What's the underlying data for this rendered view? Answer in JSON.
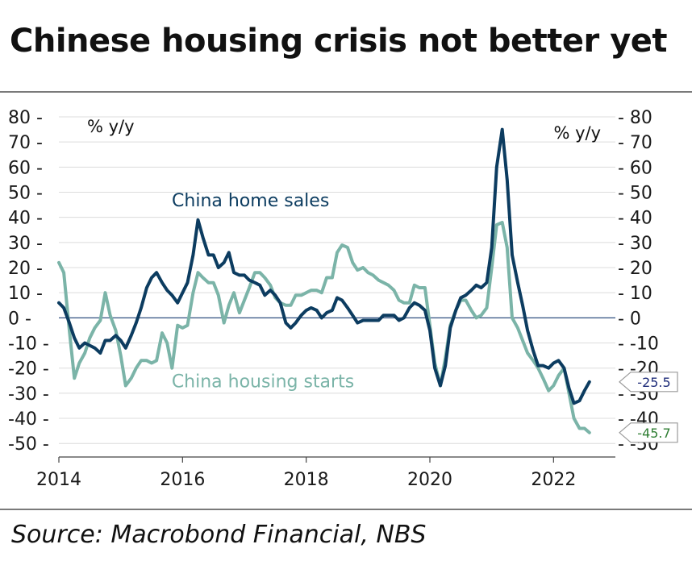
{
  "title": "Chinese housing crisis not better yet",
  "source": "Source: Macrobond Financial, NBS",
  "chart_data": {
    "type": "line",
    "title": "Chinese housing crisis not better yet",
    "ylabel_left": "% y/y",
    "ylabel_right": "% y/y",
    "ylim": [
      -55,
      82
    ],
    "xlim": [
      2014.0,
      2023.0
    ],
    "yticks": [
      80,
      70,
      60,
      50,
      40,
      30,
      20,
      10,
      0,
      -10,
      -20,
      -30,
      -40,
      -50
    ],
    "ytick_labels": [
      "80",
      "70",
      "60",
      "50",
      "40",
      "30",
      "20",
      "10",
      "0",
      "-10",
      "-20",
      "-30",
      "-40",
      "-50"
    ],
    "xticks": [
      2014,
      2016,
      2018,
      2020,
      2022
    ],
    "xtick_labels": [
      "2014",
      "2016",
      "2018",
      "2020",
      "2022"
    ],
    "grid": true,
    "zero_line": true,
    "colors": {
      "home_sales": "#0c3c60",
      "housing_starts": "#7bb4a8",
      "zero_line": "#2f4f7f",
      "grid": "#dcdcdc"
    },
    "series": [
      {
        "name": "China home sales",
        "color": "#0c3c60",
        "last_value_label": "-25.5",
        "points": [
          [
            2014.0,
            6
          ],
          [
            2014.08,
            4
          ],
          [
            2014.17,
            -2
          ],
          [
            2014.25,
            -8
          ],
          [
            2014.33,
            -12
          ],
          [
            2014.42,
            -10
          ],
          [
            2014.5,
            -11
          ],
          [
            2014.58,
            -12
          ],
          [
            2014.67,
            -14
          ],
          [
            2014.75,
            -9
          ],
          [
            2014.83,
            -9
          ],
          [
            2014.92,
            -7
          ],
          [
            2015.0,
            -9
          ],
          [
            2015.08,
            -12
          ],
          [
            2015.17,
            -7
          ],
          [
            2015.25,
            -2
          ],
          [
            2015.33,
            4
          ],
          [
            2015.42,
            12
          ],
          [
            2015.5,
            16
          ],
          [
            2015.58,
            18
          ],
          [
            2015.67,
            14
          ],
          [
            2015.75,
            11
          ],
          [
            2015.83,
            9
          ],
          [
            2015.92,
            6
          ],
          [
            2016.0,
            10
          ],
          [
            2016.08,
            14
          ],
          [
            2016.17,
            25
          ],
          [
            2016.25,
            39
          ],
          [
            2016.33,
            32
          ],
          [
            2016.42,
            25
          ],
          [
            2016.5,
            25
          ],
          [
            2016.58,
            20
          ],
          [
            2016.67,
            22
          ],
          [
            2016.75,
            26
          ],
          [
            2016.83,
            18
          ],
          [
            2016.92,
            17
          ],
          [
            2017.0,
            17
          ],
          [
            2017.08,
            15
          ],
          [
            2017.17,
            14
          ],
          [
            2017.25,
            13
          ],
          [
            2017.33,
            9
          ],
          [
            2017.42,
            11
          ],
          [
            2017.5,
            9
          ],
          [
            2017.58,
            6
          ],
          [
            2017.67,
            -2
          ],
          [
            2017.75,
            -4
          ],
          [
            2017.83,
            -2
          ],
          [
            2017.92,
            1
          ],
          [
            2018.0,
            3
          ],
          [
            2018.08,
            4
          ],
          [
            2018.17,
            3
          ],
          [
            2018.25,
            0
          ],
          [
            2018.33,
            2
          ],
          [
            2018.42,
            3
          ],
          [
            2018.5,
            8
          ],
          [
            2018.58,
            7
          ],
          [
            2018.67,
            4
          ],
          [
            2018.75,
            1
          ],
          [
            2018.83,
            -2
          ],
          [
            2018.92,
            -1
          ],
          [
            2019.0,
            -1
          ],
          [
            2019.08,
            -1
          ],
          [
            2019.17,
            -1
          ],
          [
            2019.25,
            1
          ],
          [
            2019.33,
            1
          ],
          [
            2019.42,
            1
          ],
          [
            2019.5,
            -1
          ],
          [
            2019.58,
            0
          ],
          [
            2019.67,
            4
          ],
          [
            2019.75,
            6
          ],
          [
            2019.83,
            5
          ],
          [
            2019.92,
            3
          ],
          [
            2020.0,
            -5
          ],
          [
            2020.08,
            -20
          ],
          [
            2020.17,
            -27
          ],
          [
            2020.25,
            -19
          ],
          [
            2020.33,
            -4
          ],
          [
            2020.42,
            3
          ],
          [
            2020.5,
            8
          ],
          [
            2020.58,
            9
          ],
          [
            2020.67,
            11
          ],
          [
            2020.75,
            13
          ],
          [
            2020.83,
            12
          ],
          [
            2020.92,
            14
          ],
          [
            2021.0,
            28
          ],
          [
            2021.08,
            60
          ],
          [
            2021.17,
            75
          ],
          [
            2021.25,
            55
          ],
          [
            2021.33,
            25
          ],
          [
            2021.42,
            14
          ],
          [
            2021.5,
            5
          ],
          [
            2021.58,
            -5
          ],
          [
            2021.67,
            -13
          ],
          [
            2021.75,
            -19
          ],
          [
            2021.83,
            -19
          ],
          [
            2021.92,
            -20
          ],
          [
            2022.0,
            -18
          ],
          [
            2022.08,
            -17
          ],
          [
            2022.17,
            -20
          ],
          [
            2022.25,
            -28
          ],
          [
            2022.33,
            -34
          ],
          [
            2022.42,
            -33
          ],
          [
            2022.5,
            -29
          ],
          [
            2022.58,
            -25.5
          ]
        ]
      },
      {
        "name": "China housing starts",
        "color": "#7bb4a8",
        "last_value_label": "-45.7",
        "points": [
          [
            2014.0,
            22
          ],
          [
            2014.08,
            18
          ],
          [
            2014.17,
            -5
          ],
          [
            2014.25,
            -24
          ],
          [
            2014.33,
            -18
          ],
          [
            2014.42,
            -14
          ],
          [
            2014.5,
            -8
          ],
          [
            2014.58,
            -4
          ],
          [
            2014.67,
            -1
          ],
          [
            2014.75,
            10
          ],
          [
            2014.83,
            1
          ],
          [
            2014.92,
            -5
          ],
          [
            2015.0,
            -15
          ],
          [
            2015.08,
            -27
          ],
          [
            2015.17,
            -24
          ],
          [
            2015.25,
            -20
          ],
          [
            2015.33,
            -17
          ],
          [
            2015.42,
            -17
          ],
          [
            2015.5,
            -18
          ],
          [
            2015.58,
            -17
          ],
          [
            2015.67,
            -6
          ],
          [
            2015.75,
            -10
          ],
          [
            2015.83,
            -20
          ],
          [
            2015.92,
            -3
          ],
          [
            2016.0,
            -4
          ],
          [
            2016.08,
            -3
          ],
          [
            2016.17,
            10
          ],
          [
            2016.25,
            18
          ],
          [
            2016.33,
            16
          ],
          [
            2016.42,
            14
          ],
          [
            2016.5,
            14
          ],
          [
            2016.58,
            9
          ],
          [
            2016.67,
            -2
          ],
          [
            2016.75,
            5
          ],
          [
            2016.83,
            10
          ],
          [
            2016.92,
            2
          ],
          [
            2017.0,
            7
          ],
          [
            2017.08,
            12
          ],
          [
            2017.17,
            18
          ],
          [
            2017.25,
            18
          ],
          [
            2017.33,
            16
          ],
          [
            2017.42,
            13
          ],
          [
            2017.5,
            8
          ],
          [
            2017.58,
            6
          ],
          [
            2017.67,
            5
          ],
          [
            2017.75,
            5
          ],
          [
            2017.83,
            9
          ],
          [
            2017.92,
            9
          ],
          [
            2018.0,
            10
          ],
          [
            2018.08,
            11
          ],
          [
            2018.17,
            11
          ],
          [
            2018.25,
            10
          ],
          [
            2018.33,
            16
          ],
          [
            2018.42,
            16
          ],
          [
            2018.5,
            26
          ],
          [
            2018.58,
            29
          ],
          [
            2018.67,
            28
          ],
          [
            2018.75,
            22
          ],
          [
            2018.83,
            19
          ],
          [
            2018.92,
            20
          ],
          [
            2019.0,
            18
          ],
          [
            2019.08,
            17
          ],
          [
            2019.17,
            15
          ],
          [
            2019.25,
            14
          ],
          [
            2019.33,
            13
          ],
          [
            2019.42,
            11
          ],
          [
            2019.5,
            7
          ],
          [
            2019.58,
            6
          ],
          [
            2019.67,
            6
          ],
          [
            2019.75,
            13
          ],
          [
            2019.83,
            12
          ],
          [
            2019.92,
            12
          ],
          [
            2020.0,
            -3
          ],
          [
            2020.08,
            -18
          ],
          [
            2020.17,
            -27
          ],
          [
            2020.25,
            -16
          ],
          [
            2020.33,
            -3
          ],
          [
            2020.42,
            3
          ],
          [
            2020.5,
            7
          ],
          [
            2020.58,
            7
          ],
          [
            2020.67,
            3
          ],
          [
            2020.75,
            0
          ],
          [
            2020.83,
            1
          ],
          [
            2020.92,
            4
          ],
          [
            2021.0,
            20
          ],
          [
            2021.08,
            37
          ],
          [
            2021.17,
            38
          ],
          [
            2021.25,
            28
          ],
          [
            2021.33,
            0
          ],
          [
            2021.42,
            -4
          ],
          [
            2021.5,
            -9
          ],
          [
            2021.58,
            -14
          ],
          [
            2021.67,
            -17
          ],
          [
            2021.75,
            -20
          ],
          [
            2021.83,
            -24
          ],
          [
            2021.92,
            -29
          ],
          [
            2022.0,
            -27
          ],
          [
            2022.08,
            -23
          ],
          [
            2022.17,
            -20
          ],
          [
            2022.25,
            -30
          ],
          [
            2022.33,
            -40
          ],
          [
            2022.42,
            -44
          ],
          [
            2022.5,
            -44
          ],
          [
            2022.58,
            -45.7
          ]
        ]
      }
    ],
    "annotations": [
      {
        "text": "China home sales",
        "series": "China home sales",
        "x": 2017.1,
        "y": 47
      },
      {
        "text": "China housing starts",
        "series": "China housing starts",
        "x": 2017.3,
        "y": -25
      }
    ]
  }
}
